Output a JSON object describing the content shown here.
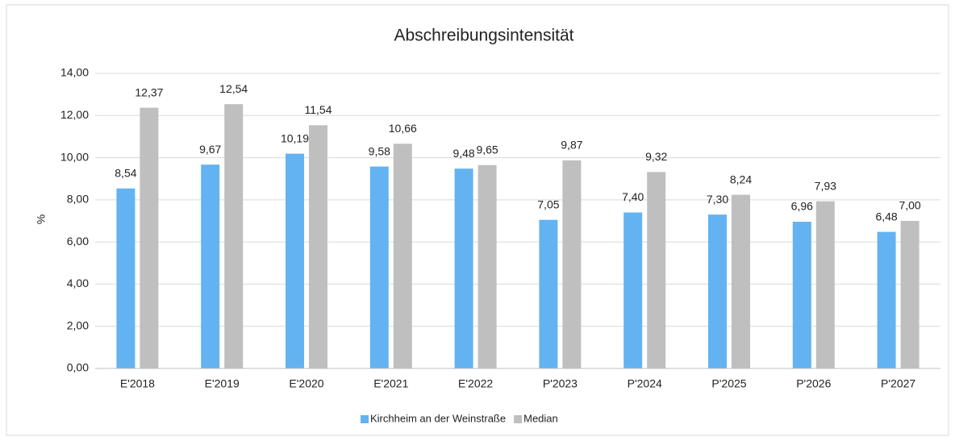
{
  "chart_data": {
    "type": "bar",
    "title": "Abschreibungsintensität",
    "y_label": "%",
    "categories": [
      "E'2018",
      "E'2019",
      "E'2020",
      "E'2021",
      "E'2022",
      "P'2023",
      "P'2024",
      "P'2025",
      "P'2026",
      "P'2027"
    ],
    "series": [
      {
        "name": "Kirchheim an der Weinstraße",
        "color": "#63b3f2",
        "values": [
          8.54,
          9.67,
          10.19,
          9.58,
          9.48,
          7.05,
          7.4,
          7.3,
          6.96,
          6.48
        ],
        "value_labels": [
          "8,54",
          "9,67",
          "10,19",
          "9,58",
          "9,48",
          "7,05",
          "7,40",
          "7,30",
          "6,96",
          "6,48"
        ]
      },
      {
        "name": "Median",
        "color": "#bfbfbf",
        "values": [
          12.37,
          12.54,
          11.54,
          10.66,
          9.65,
          9.87,
          9.32,
          8.24,
          7.93,
          7.0
        ],
        "value_labels": [
          "12,37",
          "12,54",
          "11,54",
          "10,66",
          "9,65",
          "9,87",
          "9,32",
          "8,24",
          "7,93",
          "7,00"
        ]
      }
    ],
    "ylim": [
      0,
      14
    ],
    "yticks": [
      {
        "value": 0,
        "label": "0,00"
      },
      {
        "value": 2,
        "label": "2,00"
      },
      {
        "value": 4,
        "label": "4,00"
      },
      {
        "value": 6,
        "label": "6,00"
      },
      {
        "value": 8,
        "label": "8,00"
      },
      {
        "value": 10,
        "label": "10,00"
      },
      {
        "value": 12,
        "label": "12,00"
      },
      {
        "value": 14,
        "label": "14,00"
      }
    ],
    "grid": true,
    "legend": "bottom"
  }
}
